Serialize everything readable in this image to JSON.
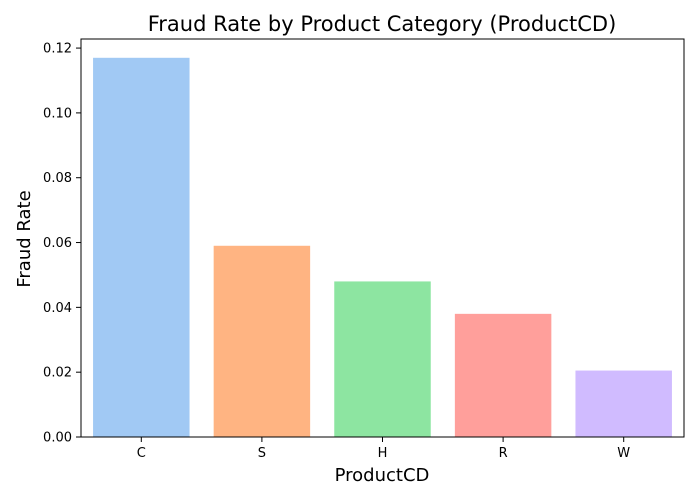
{
  "chart_data": {
    "type": "bar",
    "title": "Fraud Rate by Product Category (ProductCD)",
    "xlabel": "ProductCD",
    "ylabel": "Fraud Rate",
    "categories": [
      "C",
      "S",
      "H",
      "R",
      "W"
    ],
    "values": [
      0.117,
      0.059,
      0.048,
      0.038,
      0.0205
    ],
    "colors": [
      "#a1c9f4",
      "#ffb482",
      "#8de5a1",
      "#ff9f9b",
      "#d0bbff"
    ],
    "ylim": [
      0,
      0.1228
    ],
    "yticks": [
      0.0,
      0.02,
      0.04,
      0.06,
      0.08,
      0.1,
      0.12
    ],
    "ytick_labels": [
      "0.00",
      "0.02",
      "0.04",
      "0.06",
      "0.08",
      "0.10",
      "0.12"
    ],
    "grid": false,
    "legend": "none"
  }
}
